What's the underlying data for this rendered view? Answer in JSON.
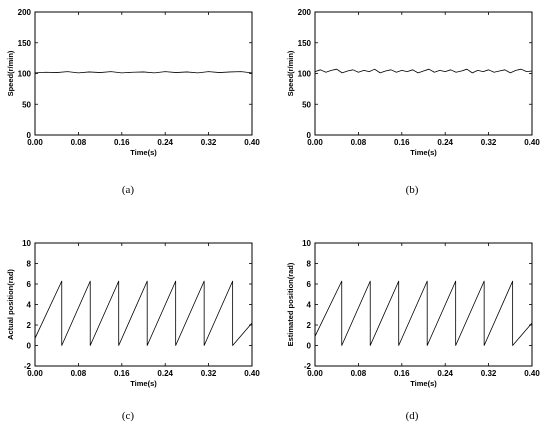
{
  "chart_data": [
    {
      "type": "line",
      "caption": "(a)",
      "xlabel": "Time(s)",
      "ylabel": "Speed(r/min)",
      "xlim": [
        0,
        0.4
      ],
      "ylim": [
        0,
        200
      ],
      "xticks": [
        "0.00",
        "0.08",
        "0.16",
        "0.24",
        "0.32",
        "0.40"
      ],
      "yticks": [
        "0",
        "50",
        "100",
        "150",
        "200"
      ],
      "series": [
        {
          "x": [
            0,
            0.02,
            0.04,
            0.06,
            0.08,
            0.1,
            0.12,
            0.14,
            0.16,
            0.18,
            0.2,
            0.22,
            0.24,
            0.26,
            0.28,
            0.3,
            0.32,
            0.34,
            0.36,
            0.38,
            0.4
          ],
          "y": [
            101,
            102,
            101.5,
            103,
            101,
            102.5,
            101.5,
            103,
            101,
            102,
            102.5,
            101,
            103,
            101.5,
            102.5,
            101,
            103,
            101.5,
            102.5,
            103,
            101
          ]
        }
      ]
    },
    {
      "type": "line",
      "caption": "(b)",
      "xlabel": "Time(s)",
      "ylabel": "Speed(r/min)",
      "xlim": [
        0,
        0.4
      ],
      "ylim": [
        0,
        200
      ],
      "xticks": [
        "0.00",
        "0.08",
        "0.16",
        "0.24",
        "0.32",
        "0.40"
      ],
      "yticks": [
        "0",
        "50",
        "100",
        "150",
        "200"
      ],
      "series": [
        {
          "x": [
            0,
            0.01,
            0.02,
            0.03,
            0.04,
            0.05,
            0.06,
            0.07,
            0.08,
            0.09,
            0.1,
            0.11,
            0.12,
            0.13,
            0.14,
            0.15,
            0.16,
            0.17,
            0.18,
            0.19,
            0.2,
            0.21,
            0.22,
            0.23,
            0.24,
            0.25,
            0.26,
            0.27,
            0.28,
            0.29,
            0.3,
            0.31,
            0.32,
            0.33,
            0.34,
            0.35,
            0.36,
            0.37,
            0.38,
            0.39,
            0.4
          ],
          "y": [
            103,
            106,
            102,
            105,
            107,
            101,
            104,
            106,
            102,
            105,
            103,
            107,
            101,
            104,
            106,
            102,
            105,
            103,
            106,
            101,
            104,
            107,
            102,
            105,
            103,
            106,
            102,
            104,
            107,
            101,
            105,
            103,
            106,
            102,
            104,
            106,
            101,
            105,
            107,
            103,
            104
          ]
        }
      ]
    },
    {
      "type": "line",
      "caption": "(c)",
      "xlabel": "Time(s)",
      "ylabel": "Actual position(rad)",
      "xlim": [
        0,
        0.4
      ],
      "ylim": [
        -2,
        10
      ],
      "xticks": [
        "0.00",
        "0.08",
        "0.16",
        "0.24",
        "0.32",
        "0.40"
      ],
      "yticks": [
        "-2",
        "0",
        "2",
        "4",
        "6",
        "8",
        "10"
      ],
      "series": [
        {
          "x": [
            0,
            0.0493,
            0.0493,
            0.1018,
            0.1018,
            0.1543,
            0.1543,
            0.2068,
            0.2068,
            0.2593,
            0.2593,
            0.3118,
            0.3118,
            0.3643,
            0.3643,
            0.4
          ],
          "y": [
            0.7,
            6.28,
            0,
            6.28,
            0,
            6.28,
            0,
            6.28,
            0,
            6.28,
            0,
            6.28,
            0,
            6.28,
            0,
            2.2
          ]
        }
      ]
    },
    {
      "type": "line",
      "caption": "(d)",
      "xlabel": "Time(s)",
      "ylabel": "Estimated position(rad)",
      "xlim": [
        0,
        0.4
      ],
      "ylim": [
        -2,
        10
      ],
      "xticks": [
        "0.00",
        "0.08",
        "0.16",
        "0.24",
        "0.32",
        "0.40"
      ],
      "yticks": [
        "-2",
        "0",
        "2",
        "4",
        "6",
        "8",
        "10"
      ],
      "series": [
        {
          "x": [
            0,
            0.0493,
            0.0493,
            0.1018,
            0.1018,
            0.1543,
            0.1543,
            0.2068,
            0.2068,
            0.2593,
            0.2593,
            0.3118,
            0.3118,
            0.3643,
            0.3643,
            0.4
          ],
          "y": [
            0.9,
            6.28,
            0,
            6.28,
            0,
            6.28,
            0,
            6.28,
            0,
            6.28,
            0,
            6.28,
            0,
            6.28,
            0,
            2.2
          ]
        }
      ]
    }
  ]
}
